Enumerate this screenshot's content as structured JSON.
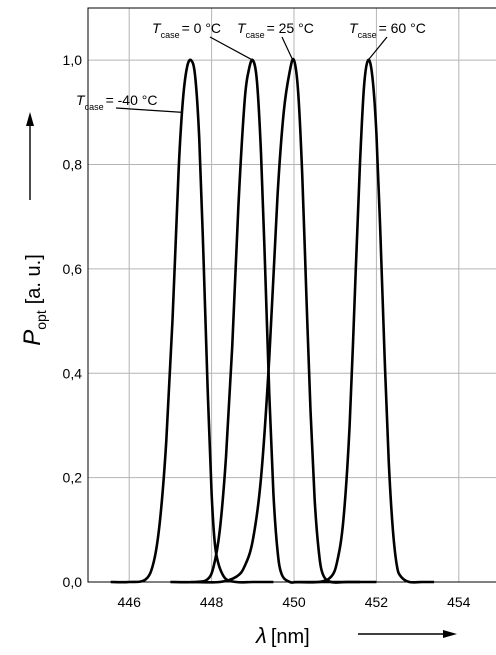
{
  "chart_data": {
    "type": "line",
    "xlabel_symbol": "λ",
    "xlabel_unit": "[nm]",
    "ylabel_symbol": "P",
    "ylabel_sub": "opt",
    "ylabel_unit": "[a. u.]",
    "xlim": [
      445,
      455
    ],
    "ylim": [
      0,
      1.1
    ],
    "x_ticks": [
      446,
      448,
      450,
      452,
      454
    ],
    "x_tick_labels": [
      "446",
      "448",
      "450",
      "452",
      "454"
    ],
    "y_ticks": [
      0,
      0.2,
      0.4,
      0.6,
      0.8,
      1.0
    ],
    "y_tick_labels": [
      "0,0",
      "0,2",
      "0,4",
      "0,6",
      "0,8",
      "1,0"
    ],
    "grid": true,
    "series": [
      {
        "name": "T_case = -40 °C",
        "x": [
          445.55,
          446.0,
          446.4,
          446.6,
          446.75,
          446.9,
          447.05,
          447.2,
          447.3,
          447.4,
          447.5,
          447.6,
          447.7,
          447.8,
          447.9,
          448.0,
          448.1,
          448.3,
          448.6,
          449.0,
          449.5
        ],
        "values": [
          0.0,
          0.0,
          0.005,
          0.04,
          0.12,
          0.27,
          0.5,
          0.79,
          0.92,
          0.985,
          1.0,
          0.97,
          0.85,
          0.63,
          0.38,
          0.17,
          0.06,
          0.01,
          0.0,
          0.0,
          0.0
        ]
      },
      {
        "name": "T_case = 0 °C",
        "x": [
          447.0,
          447.6,
          447.9,
          448.05,
          448.2,
          448.35,
          448.5,
          448.65,
          448.8,
          448.9,
          449.0,
          449.1,
          449.2,
          449.3,
          449.4,
          449.5,
          449.6,
          449.7,
          449.9,
          450.2,
          451.6
        ],
        "values": [
          0.0,
          0.0,
          0.005,
          0.03,
          0.1,
          0.24,
          0.45,
          0.72,
          0.92,
          0.98,
          1.0,
          0.96,
          0.82,
          0.6,
          0.36,
          0.17,
          0.06,
          0.015,
          0.0,
          0.0,
          0.0
        ]
      },
      {
        "name": "T_case = 25 °C",
        "x": [
          447.5,
          448.2,
          448.6,
          448.8,
          449.0,
          449.2,
          449.4,
          449.6,
          449.75,
          449.9,
          450.0,
          450.1,
          450.2,
          450.3,
          450.4,
          450.5,
          450.6,
          450.7,
          450.9,
          451.3,
          452.0
        ],
        "values": [
          0.0,
          0.0,
          0.01,
          0.03,
          0.08,
          0.2,
          0.43,
          0.74,
          0.9,
          0.98,
          1.0,
          0.94,
          0.78,
          0.55,
          0.33,
          0.16,
          0.06,
          0.015,
          0.0,
          0.0,
          0.0
        ]
      },
      {
        "name": "T_case = 60 °C",
        "x": [
          450.0,
          450.6,
          450.9,
          451.05,
          451.2,
          451.35,
          451.5,
          451.6,
          451.7,
          451.8,
          451.9,
          452.0,
          452.1,
          452.2,
          452.3,
          452.4,
          452.5,
          452.6,
          452.8,
          453.1,
          453.4
        ],
        "values": [
          0.0,
          0.0,
          0.01,
          0.04,
          0.12,
          0.3,
          0.6,
          0.8,
          0.95,
          1.0,
          0.97,
          0.86,
          0.66,
          0.43,
          0.23,
          0.1,
          0.03,
          0.01,
          0.0,
          0.0,
          0.0
        ]
      }
    ],
    "annotations": [
      {
        "T": "T",
        "sub": "case",
        "value": "= -40 °C",
        "target": [
          447.3,
          0.9
        ]
      },
      {
        "T": "T",
        "sub": "case",
        "value": "= 0 °C",
        "target": [
          449.0,
          1.0
        ]
      },
      {
        "T": "T",
        "sub": "case",
        "value": "= 25 °C",
        "target": [
          449.97,
          1.0
        ]
      },
      {
        "T": "T",
        "sub": "case",
        "value": "= 60 °C",
        "target": [
          451.8,
          1.0
        ]
      }
    ]
  }
}
